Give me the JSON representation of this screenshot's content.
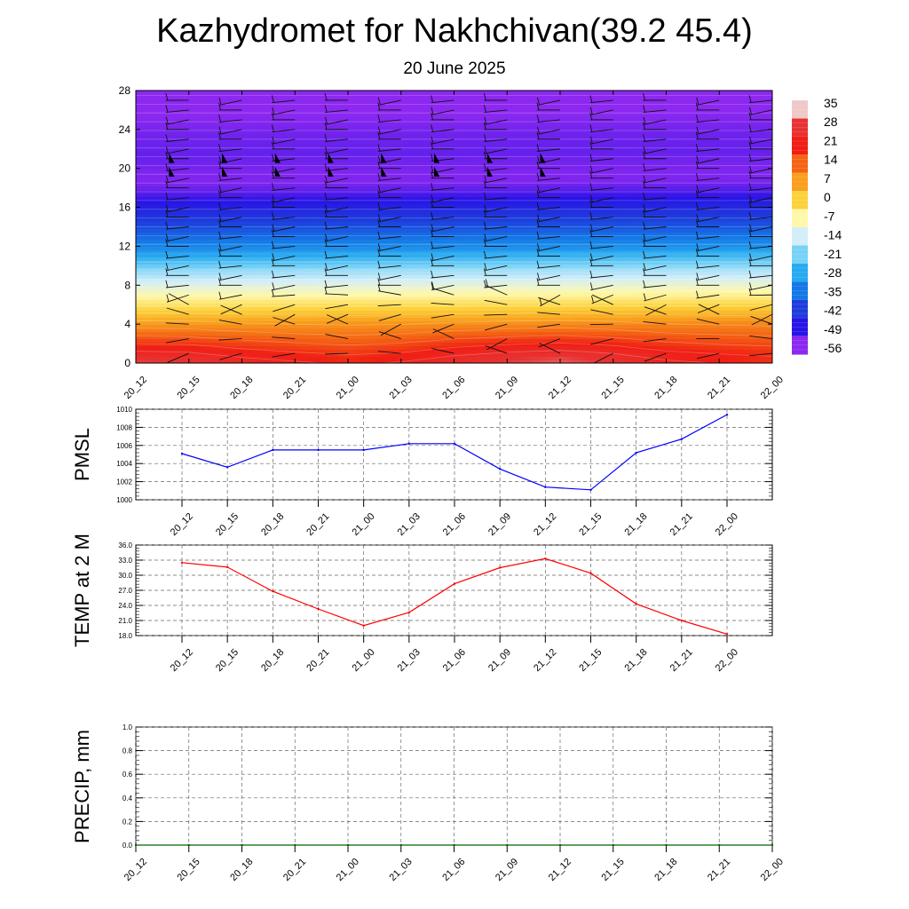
{
  "header": {
    "title": "Kazhydromet for Nakhchivan(39.2 45.4)",
    "subtitle": "20 June 2025"
  },
  "chart_data": [
    {
      "type": "heatmap",
      "title": "",
      "ylabel": "",
      "ylim": [
        0,
        28
      ],
      "yticks": [
        "0",
        "4",
        "8",
        "12",
        "16",
        "20",
        "24",
        "28"
      ],
      "x": [
        "20_12",
        "20_15",
        "20_18",
        "20_21",
        "21_00",
        "21_03",
        "21_06",
        "21_09",
        "21_12",
        "21_15",
        "21_18",
        "21_21",
        "22_00"
      ],
      "colorbar": {
        "labels": [
          "35",
          "28",
          "21",
          "14",
          "7",
          "0",
          "-7",
          "-14",
          "-21",
          "-28",
          "-35",
          "-42",
          "-49",
          "-56"
        ],
        "colors": [
          "#f0c8c8",
          "#e83232",
          "#f01e14",
          "#f46414",
          "#f8a01e",
          "#fcd23c",
          "#fff8aa",
          "#d2eefa",
          "#78d2f6",
          "#28aaf0",
          "#1478e6",
          "#1e3cdc",
          "#2814e6",
          "#8c28f0"
        ],
        "range": [
          -60,
          38
        ]
      },
      "levels": {
        "altitudes": [
          0,
          1,
          2,
          3,
          4,
          5,
          6,
          8,
          10,
          12,
          14,
          16,
          18,
          19,
          20,
          21,
          22,
          24,
          26,
          28
        ],
        "temperature_profile": [
          32,
          30,
          24,
          18,
          12,
          6,
          0,
          -10,
          -20,
          -33,
          -41,
          -48,
          -56,
          -59,
          -59,
          -58,
          -57,
          -58,
          -60,
          -60
        ]
      },
      "surface_temperature": [
        32.5,
        31.5,
        26.8,
        23.2,
        20.0,
        22.6,
        28.3,
        31.5,
        33.3,
        30.4,
        24.3,
        21.0,
        18.3
      ],
      "wind_barbs": "present"
    },
    {
      "type": "line",
      "ylabel": "PMSL",
      "ylim": [
        1000,
        1010
      ],
      "yticks": [
        "1000",
        "1002",
        "1004",
        "1006",
        "1008",
        "1010"
      ],
      "x": [
        "20_12",
        "20_15",
        "20_18",
        "20_21",
        "21_00",
        "21_03",
        "21_06",
        "21_09",
        "21_12",
        "21_15",
        "21_18",
        "21_21",
        "22_00"
      ],
      "values": [
        1005.1,
        1003.6,
        1005.5,
        1005.5,
        1005.5,
        1006.2,
        1006.2,
        1003.4,
        1001.4,
        1001.1,
        1005.2,
        1006.7,
        1009.4
      ],
      "color": "#0000ff",
      "grid": true
    },
    {
      "type": "line",
      "ylabel": "TEMP at 2 M",
      "ylim": [
        18,
        36
      ],
      "yticks": [
        "18.0",
        "21.0",
        "24.0",
        "27.0",
        "30.0",
        "33.0",
        "36.0"
      ],
      "x": [
        "20_12",
        "20_15",
        "20_18",
        "20_21",
        "21_00",
        "21_03",
        "21_06",
        "21_09",
        "21_12",
        "21_15",
        "21_18",
        "21_21",
        "22_00"
      ],
      "values": [
        32.5,
        31.6,
        26.8,
        23.3,
        20.0,
        22.6,
        28.3,
        31.5,
        33.3,
        30.4,
        24.3,
        21.0,
        18.3
      ],
      "color": "#ff0000",
      "grid": true
    },
    {
      "type": "line",
      "ylabel": "PRECIP, mm",
      "ylim": [
        0,
        1
      ],
      "yticks": [
        "0.0",
        "0.2",
        "0.4",
        "0.6",
        "0.8",
        "1.0"
      ],
      "x": [
        "20_12",
        "20_15",
        "20_18",
        "20_21",
        "21_00",
        "21_03",
        "21_06",
        "21_09",
        "21_12",
        "21_15",
        "21_18",
        "21_21",
        "22_00"
      ],
      "values": [
        0,
        0,
        0,
        0,
        0,
        0,
        0,
        0,
        0,
        0,
        0,
        0,
        0
      ],
      "color": "#006400",
      "grid": true
    }
  ]
}
